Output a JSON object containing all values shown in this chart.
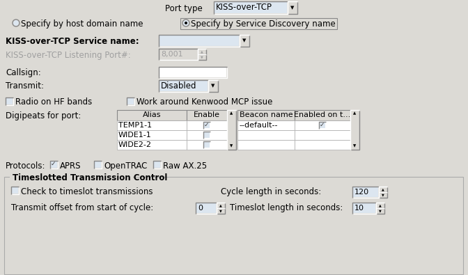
{
  "bg_color": "#dcdad5",
  "title_text": "Port type",
  "dropdown_kiss": "KISS-over-TCP",
  "radio1_text": "Specify by host domain name",
  "radio2_text": "Specify by Service Discovery name",
  "label_service": "KISS-over-TCP Service name:",
  "label_port": "KISS-over-TCP Listening Port#:",
  "port_value": "8,001",
  "label_callsign": "Callsign:",
  "label_transmit": "Transmit:",
  "transmit_value": "Disabled",
  "check1_text": "Radio on HF bands",
  "check2_text": "Work around Kenwood MCP issue",
  "digi_label": "Digipeats for port:",
  "digi_col1": "Alias",
  "digi_col2": "Enable",
  "digi_row1": "TEMP1-1",
  "digi_row2": "WIDE1-1",
  "digi_row3": "WIDE2-2",
  "beacon_col1": "Beacon name",
  "beacon_col2": "Enabled on t...",
  "beacon_row1": "--default--",
  "protocols_label": "Protocols:",
  "proto1": "APRS",
  "proto2": "OpenTRAC",
  "proto3": "Raw AX.25",
  "timeslot_title": "Timeslotted Transmission Control",
  "timeslot_check": "Check to timeslot transmissions",
  "cycle_label": "Cycle length in seconds:",
  "cycle_value": "120",
  "offset_label": "Transmit offset from start of cycle:",
  "offset_value": "0",
  "timeslot_label": "Timeslot length in seconds:",
  "timeslot_value": "10",
  "widget_bg": "#ffffff",
  "widget_border": "#808080",
  "disabled_text": "#a0a0a0",
  "light_blue_bg": "#dce6f0"
}
